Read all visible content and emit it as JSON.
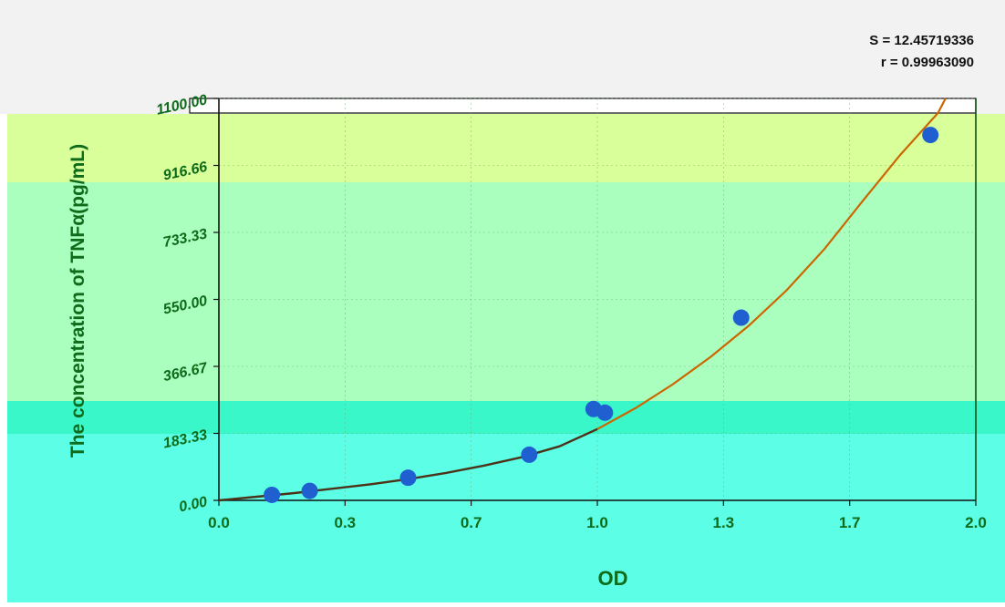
{
  "stats": {
    "s_label": "S = 12.45719336",
    "r_label": "r = 0.99963090"
  },
  "chart_data": {
    "type": "scatter",
    "xlabel": "OD",
    "ylabel": "The concentration of TNFα(pg/mL)",
    "xlim": [
      0.0,
      2.0
    ],
    "ylim": [
      0.0,
      1100.0
    ],
    "x_ticks": [
      "0.0",
      "0.3",
      "0.7",
      "1.0",
      "1.3",
      "1.7",
      "2.0"
    ],
    "y_ticks": [
      "0.00",
      "183.33",
      "366.67",
      "550.00",
      "733.33",
      "916.66",
      "1100.00"
    ],
    "grid": true,
    "series": [
      {
        "kind": "points",
        "x": [
          0.14,
          0.24,
          0.5,
          0.82,
          0.99,
          1.02,
          1.38,
          1.88
        ],
        "y": [
          15,
          26,
          62,
          125,
          250,
          240,
          500,
          1000
        ],
        "color": "#1f5fd0"
      },
      {
        "kind": "fit",
        "x": [
          0.0,
          0.1,
          0.2,
          0.3,
          0.4,
          0.5,
          0.6,
          0.7,
          0.8,
          0.9,
          1.0,
          1.1,
          1.2,
          1.3,
          1.4,
          1.5,
          1.6,
          1.7,
          1.8,
          1.9,
          1.92
        ],
        "y": [
          0,
          10,
          20,
          32,
          44,
          58,
          75,
          95,
          118,
          148,
          195,
          252,
          318,
          393,
          478,
          575,
          688,
          818,
          945,
          1060,
          1100
        ],
        "color": "#cc6600"
      }
    ]
  },
  "colors": {
    "bg_top": "#f2f2f2",
    "band_yellow": "#d8ff9a",
    "band_green": "#aaffbf",
    "band_teal": "#5cffe6",
    "band_teal_dark": "#39f7c8",
    "axis_text": "#0d6b1a",
    "fit_low": "#222222",
    "fit_high": "#cc6600",
    "dot": "#1f5fd0"
  }
}
